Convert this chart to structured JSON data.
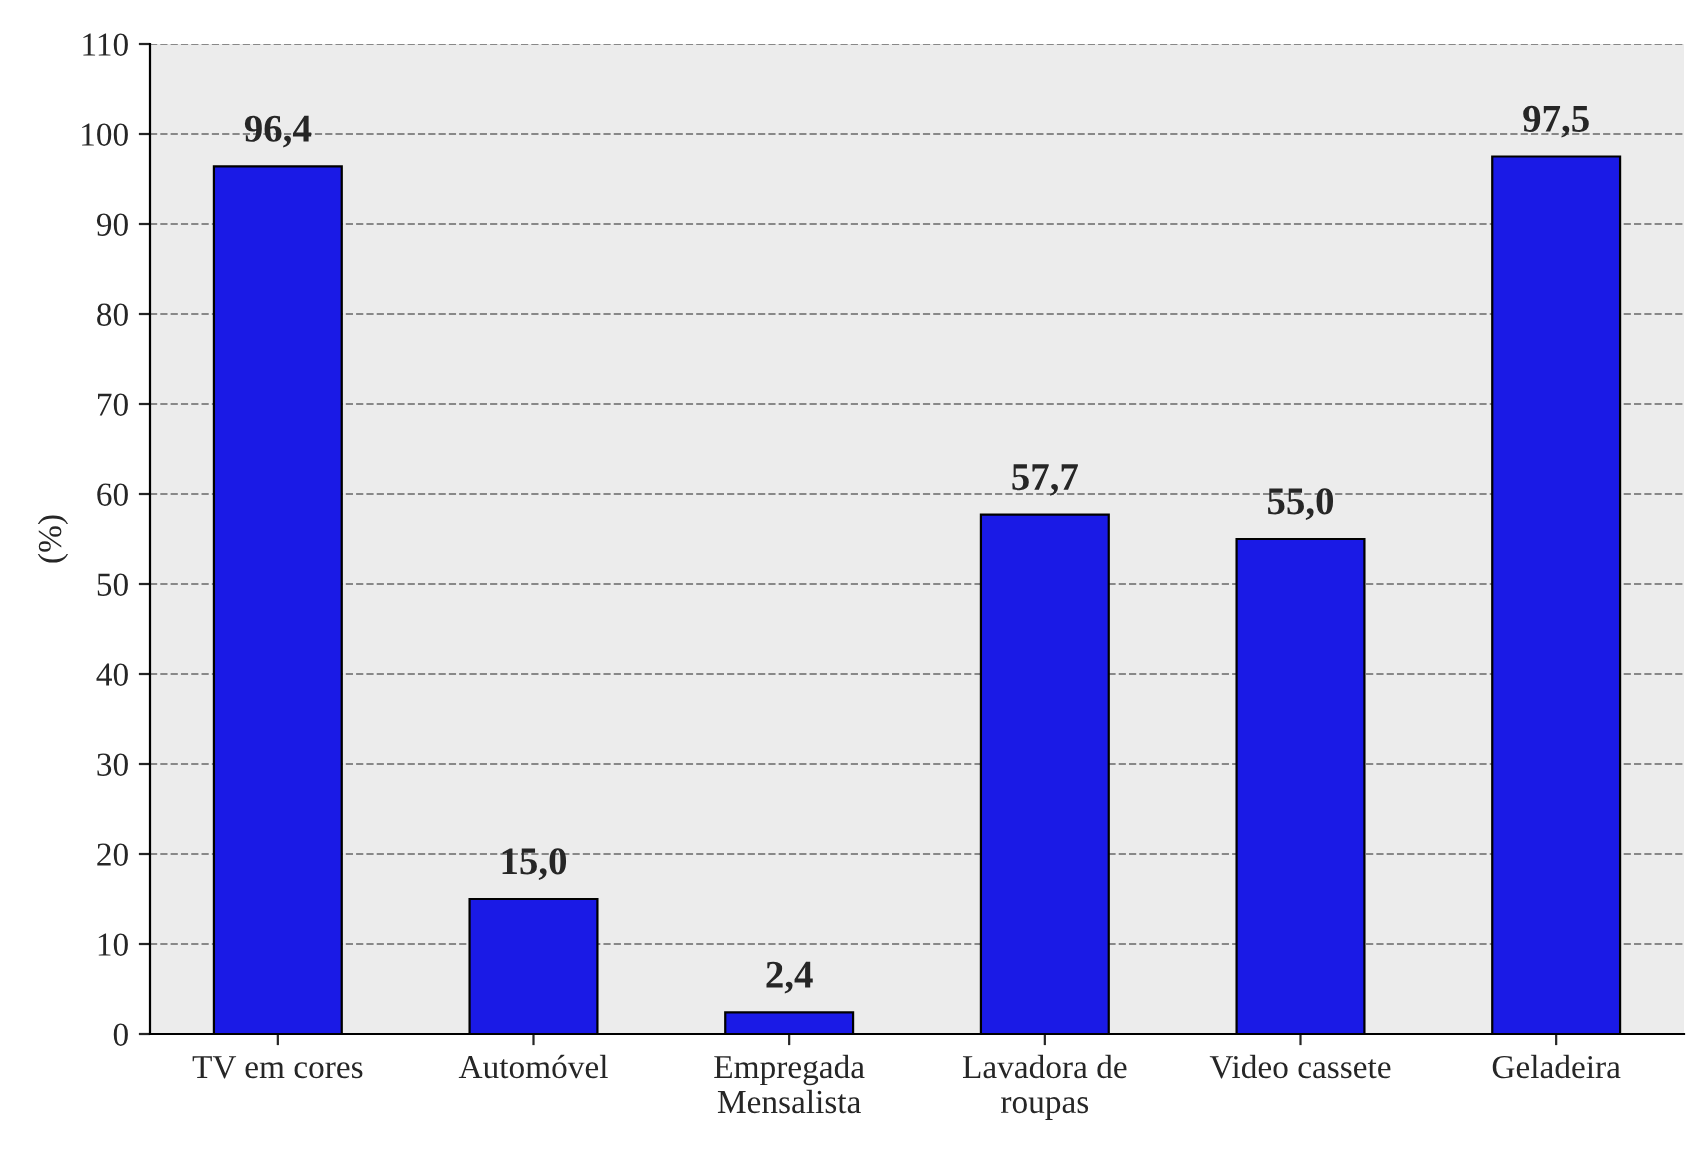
{
  "chart_data": {
    "type": "bar",
    "ylabel": "(%)",
    "categories": [
      "TV em cores",
      "Automóvel",
      "Empregada\nMensalista",
      "Lavadora de\nroupas",
      "Video cassete",
      "Geladeira"
    ],
    "values": [
      96.4,
      15.0,
      2.4,
      57.7,
      55.0,
      97.5
    ],
    "value_labels": [
      "96,4",
      "15,0",
      "2,4",
      "57,7",
      "55,0",
      "97,5"
    ],
    "color": "#1a1ae6",
    "ylim": [
      0,
      110
    ],
    "yticks": [
      0,
      10,
      20,
      30,
      40,
      50,
      60,
      70,
      80,
      90,
      100,
      110
    ],
    "grid": "y",
    "line_style": "dashed"
  }
}
